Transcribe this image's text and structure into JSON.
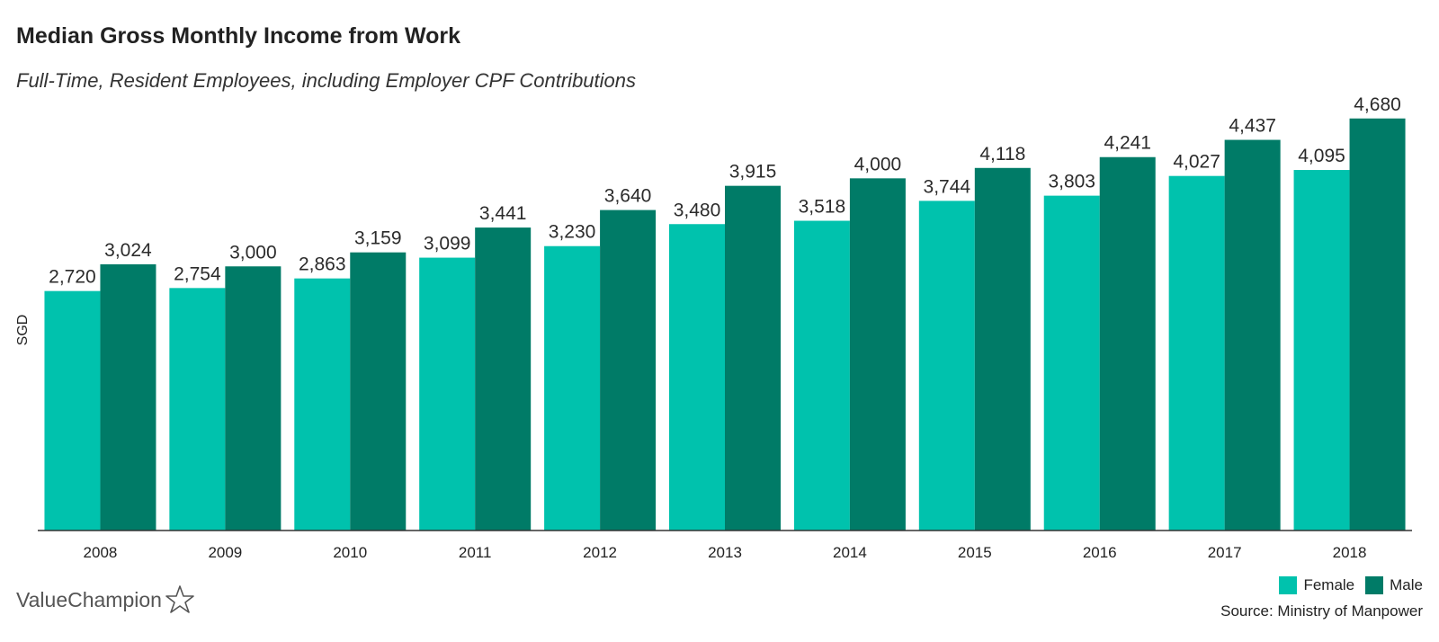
{
  "header": {
    "title": "Median Gross Monthly Income from Work",
    "subtitle": "Full-Time, Resident Employees, including Employer CPF Contributions"
  },
  "footer": {
    "source": "Source: Ministry of Manpower",
    "brand": "ValueChampion",
    "brand_icon": "star-icon"
  },
  "colors": {
    "female": "#00c2ad",
    "male": "#007b67",
    "axis": "#333333"
  },
  "chart_data": {
    "type": "bar",
    "title": "Median Gross Monthly Income from Work",
    "subtitle": "Full-Time, Resident Employees, including Employer CPF Contributions",
    "xlabel": "",
    "ylabel": "SGD",
    "ylim": [
      0,
      4800
    ],
    "grid": false,
    "legend_position": "bottom-right",
    "categories": [
      "2008",
      "2009",
      "2010",
      "2011",
      "2012",
      "2013",
      "2014",
      "2015",
      "2016",
      "2017",
      "2018"
    ],
    "series": [
      {
        "name": "Female",
        "color": "#00c2ad",
        "values": [
          2720,
          2754,
          2863,
          3099,
          3230,
          3480,
          3518,
          3744,
          3803,
          4027,
          4095
        ],
        "labels": [
          "2,720",
          "2,754",
          "2,863",
          "3,099",
          "3,230",
          "3,480",
          "3,518",
          "3,744",
          "3,803",
          "4,027",
          "4,095"
        ]
      },
      {
        "name": "Male",
        "color": "#007b67",
        "values": [
          3024,
          3000,
          3159,
          3441,
          3640,
          3915,
          4000,
          4118,
          4241,
          4437,
          4680
        ],
        "labels": [
          "3,024",
          "3,000",
          "3,159",
          "3,441",
          "3,640",
          "3,915",
          "4,000",
          "4,118",
          "4,241",
          "4,437",
          "4,680"
        ]
      }
    ]
  }
}
